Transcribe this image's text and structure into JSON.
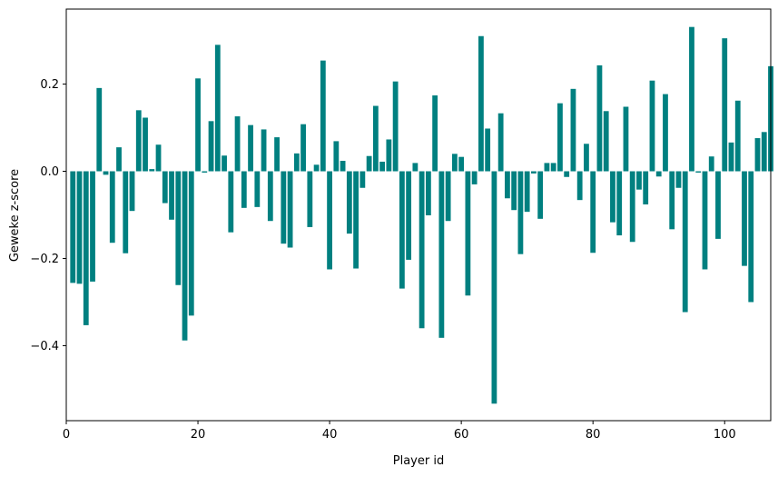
{
  "chart_data": {
    "type": "bar",
    "title": "",
    "xlabel": "Player id",
    "ylabel": "Geweke z-score",
    "color": "#008080",
    "xlim": [
      0,
      107
    ],
    "ylim": [
      -0.572,
      0.372
    ],
    "grid": false,
    "legend": "none",
    "xticks": [
      0,
      20,
      40,
      60,
      80,
      100
    ],
    "xtick_labels": [
      "0",
      "20",
      "40",
      "60",
      "80",
      "100"
    ],
    "yticks": [
      -0.4,
      -0.2,
      0.0,
      0.2
    ],
    "ytick_labels": [
      "−0.4",
      "−0.2",
      "0.0",
      "0.2"
    ],
    "x": [
      1,
      2,
      3,
      4,
      5,
      6,
      7,
      8,
      9,
      10,
      11,
      12,
      13,
      14,
      15,
      16,
      17,
      18,
      19,
      20,
      21,
      22,
      23,
      24,
      25,
      26,
      27,
      28,
      29,
      30,
      31,
      32,
      33,
      34,
      35,
      36,
      37,
      38,
      39,
      40,
      41,
      42,
      43,
      44,
      45,
      46,
      47,
      48,
      49,
      50,
      51,
      52,
      53,
      54,
      55,
      56,
      57,
      58,
      59,
      60,
      61,
      62,
      63,
      64,
      65,
      66,
      67,
      68,
      69,
      70,
      71,
      72,
      73,
      74,
      75,
      76,
      77,
      78,
      79,
      80,
      81,
      82,
      83,
      84,
      85,
      86,
      87,
      88,
      89,
      90,
      91,
      92,
      93,
      94,
      95,
      96,
      97,
      98,
      99,
      100,
      101,
      102,
      103,
      104,
      105,
      106,
      107
    ],
    "values": [
      -0.256,
      -0.258,
      -0.353,
      -0.253,
      0.191,
      -0.008,
      -0.164,
      0.055,
      -0.188,
      -0.091,
      0.14,
      0.123,
      0.005,
      0.061,
      -0.073,
      -0.111,
      -0.261,
      -0.388,
      -0.331,
      0.213,
      -0.003,
      0.115,
      0.29,
      0.036,
      -0.14,
      0.126,
      -0.084,
      0.106,
      -0.082,
      0.096,
      -0.114,
      0.078,
      -0.166,
      -0.175,
      0.041,
      0.108,
      -0.128,
      0.015,
      0.254,
      -0.225,
      0.069,
      0.024,
      -0.143,
      -0.223,
      -0.038,
      0.035,
      0.15,
      0.022,
      0.073,
      0.206,
      -0.269,
      -0.203,
      0.019,
      -0.36,
      -0.101,
      0.174,
      -0.382,
      -0.114,
      0.04,
      0.033,
      -0.285,
      -0.03,
      0.31,
      0.098,
      -0.533,
      0.133,
      -0.062,
      -0.089,
      -0.19,
      -0.093,
      -0.005,
      -0.109,
      0.019,
      0.019,
      0.156,
      -0.013,
      0.189,
      -0.066,
      0.063,
      -0.187,
      0.243,
      0.138,
      -0.117,
      -0.147,
      0.148,
      -0.162,
      -0.042,
      -0.076,
      0.208,
      -0.012,
      0.177,
      -0.133,
      -0.038,
      -0.323,
      0.331,
      -0.003,
      -0.225,
      0.034,
      -0.155,
      0.305,
      0.066,
      0.162,
      -0.217,
      -0.3,
      0.076,
      0.09,
      0.241
    ]
  }
}
